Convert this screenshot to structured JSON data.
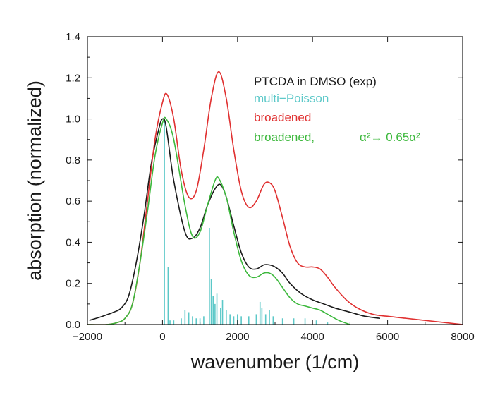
{
  "chart_data": {
    "type": "line",
    "title": "",
    "xlabel": "wavenumber (1/cm)",
    "ylabel": "absorption (normalized)",
    "xlim": [
      -2000,
      8000
    ],
    "ylim": [
      0,
      1.4
    ],
    "xticks": [
      -2000,
      0,
      2000,
      4000,
      6000,
      8000
    ],
    "yticks": [
      0.0,
      0.2,
      0.4,
      0.6,
      0.8,
      1.0,
      1.2,
      1.4
    ],
    "xtick_labels": [
      "−2000",
      "0",
      "2000",
      "4000",
      "6000",
      "8000"
    ],
    "ytick_labels": [
      "0.0",
      "0.2",
      "0.4",
      "0.6",
      "0.8",
      "1.0",
      "1.2",
      "1.4"
    ],
    "grid": false,
    "legend_position": "top-right",
    "legend": [
      {
        "label": "PTCDA in DMSO (exp)",
        "color": "#1a1a1a"
      },
      {
        "label": "multi−Poisson",
        "color": "#5bc8c8"
      },
      {
        "label": "broadened",
        "color": "#e03030"
      },
      {
        "label": "broadened,",
        "extra_label": "α²→ 0.65α²",
        "color": "#3cb83c"
      }
    ],
    "series": [
      {
        "name": "PTCDA in DMSO (exp)",
        "color": "#1a1a1a",
        "x": [
          -1950,
          -1600,
          -1300,
          -1100,
          -900,
          -700,
          -500,
          -300,
          -100,
          0,
          100,
          300,
          600,
          800,
          1000,
          1200,
          1400,
          1550,
          1700,
          1900,
          2100,
          2300,
          2500,
          2700,
          2850,
          3000,
          3200,
          3400,
          3700,
          4000,
          4300,
          4600,
          5000,
          5400,
          5800
        ],
        "y": [
          0.02,
          0.04,
          0.06,
          0.08,
          0.14,
          0.3,
          0.52,
          0.78,
          0.95,
          1.0,
          0.96,
          0.7,
          0.45,
          0.42,
          0.47,
          0.58,
          0.66,
          0.68,
          0.62,
          0.48,
          0.35,
          0.28,
          0.27,
          0.29,
          0.29,
          0.28,
          0.25,
          0.2,
          0.15,
          0.12,
          0.1,
          0.08,
          0.06,
          0.04,
          0.03
        ]
      },
      {
        "name": "broadened",
        "color": "#e03030",
        "x": [
          -2000,
          -1500,
          -1200,
          -1000,
          -800,
          -600,
          -400,
          -200,
          0,
          120,
          300,
          500,
          700,
          900,
          1100,
          1300,
          1500,
          1700,
          1900,
          2100,
          2300,
          2500,
          2700,
          2850,
          3000,
          3200,
          3400,
          3600,
          3800,
          4000,
          4200,
          4400,
          4600,
          4900,
          5200,
          5600,
          6000,
          6500,
          7000,
          7500,
          8000
        ],
        "y": [
          0.0,
          0.0,
          0.01,
          0.03,
          0.1,
          0.3,
          0.6,
          0.9,
          1.08,
          1.12,
          1.0,
          0.75,
          0.62,
          0.65,
          0.85,
          1.1,
          1.23,
          1.1,
          0.85,
          0.65,
          0.57,
          0.6,
          0.68,
          0.69,
          0.65,
          0.52,
          0.38,
          0.3,
          0.28,
          0.28,
          0.27,
          0.23,
          0.18,
          0.12,
          0.08,
          0.05,
          0.04,
          0.03,
          0.02,
          0.01,
          0.0
        ]
      },
      {
        "name": "broadened,",
        "color": "#3cb83c",
        "x": [
          -2000,
          -1500,
          -1200,
          -1000,
          -800,
          -600,
          -400,
          -200,
          0,
          100,
          300,
          600,
          800,
          1000,
          1200,
          1400,
          1500,
          1700,
          1900,
          2100,
          2300,
          2500,
          2700,
          2850,
          3000,
          3200,
          3400,
          3600,
          3800,
          4000,
          4200,
          4400,
          4700,
          5000
        ],
        "y": [
          0.0,
          0.0,
          0.01,
          0.03,
          0.1,
          0.3,
          0.55,
          0.82,
          0.98,
          1.0,
          0.9,
          0.58,
          0.43,
          0.45,
          0.58,
          0.7,
          0.71,
          0.62,
          0.45,
          0.31,
          0.24,
          0.23,
          0.25,
          0.25,
          0.23,
          0.18,
          0.13,
          0.1,
          0.09,
          0.08,
          0.07,
          0.05,
          0.02,
          0.0
        ]
      },
      {
        "name": "multi−Poisson",
        "color": "#5bc8c8",
        "type": "sticks",
        "x": [
          50,
          150,
          200,
          300,
          500,
          600,
          700,
          800,
          900,
          1000,
          1100,
          1250,
          1300,
          1350,
          1400,
          1450,
          1550,
          1600,
          1700,
          1800,
          1900,
          2000,
          2100,
          2300,
          2500,
          2600,
          2650,
          2750,
          2850,
          2950,
          3200,
          3500,
          3800,
          4100,
          4400
        ],
        "y": [
          1.0,
          0.28,
          0.02,
          0.02,
          0.03,
          0.07,
          0.06,
          0.04,
          0.03,
          0.03,
          0.04,
          0.47,
          0.22,
          0.14,
          0.1,
          0.15,
          0.08,
          0.12,
          0.07,
          0.05,
          0.04,
          0.05,
          0.04,
          0.04,
          0.05,
          0.11,
          0.08,
          0.05,
          0.07,
          0.04,
          0.03,
          0.03,
          0.03,
          0.02,
          0.01
        ]
      }
    ]
  }
}
